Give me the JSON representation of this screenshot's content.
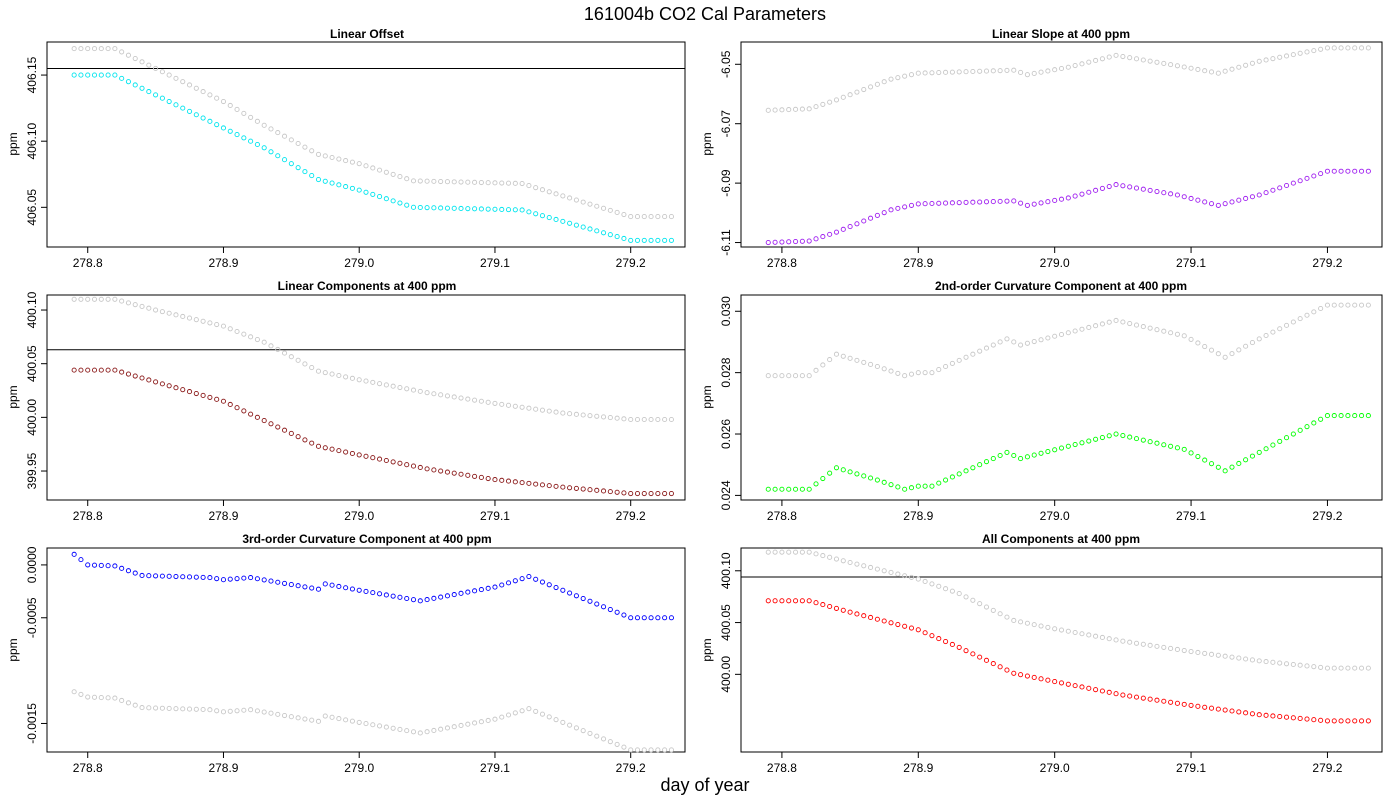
{
  "title": "161004b   CO2 Cal Parameters",
  "xlabel": "day of year",
  "colors": {
    "gray": "#c8c8c8",
    "cyan": "#00e5ee",
    "purple": "#a020f0",
    "darkred": "#8b1a1a",
    "green": "#00ff00",
    "blue": "#0000ff",
    "red": "#ff0000",
    "refline": "#000000"
  },
  "chart_data": [
    {
      "type": "scatter",
      "title": "Linear Offset",
      "ylabel": "ppm",
      "xlim": [
        278.77,
        279.24
      ],
      "ylim": [
        406.02,
        406.175
      ],
      "xticks": [
        278.8,
        278.9,
        279.0,
        279.1,
        279.2
      ],
      "xtick_labels": [
        "278.8",
        "278.9",
        "279.0",
        "279.1",
        "279.2"
      ],
      "yticks": [
        406.05,
        406.1,
        406.15
      ],
      "ytick_labels": [
        "406.05",
        "406.10",
        "406.15"
      ],
      "hline": 406.155,
      "x_start": 278.79,
      "x_step": 0.005,
      "series": [
        {
          "color": "#c8c8c8",
          "anchors": [
            [
              278.79,
              406.17
            ],
            [
              278.82,
              406.17
            ],
            [
              278.85,
              406.155
            ],
            [
              278.9,
              406.13
            ],
            [
              278.93,
              406.112
            ],
            [
              278.97,
              406.09
            ],
            [
              279.0,
              406.083
            ],
            [
              279.04,
              406.07
            ],
            [
              279.12,
              406.068
            ],
            [
              279.2,
              406.043
            ],
            [
              279.23,
              406.043
            ]
          ]
        },
        {
          "color": "#00e5ee",
          "anchors": [
            [
              278.79,
              406.15
            ],
            [
              278.82,
              406.15
            ],
            [
              278.85,
              406.135
            ],
            [
              278.9,
              406.11
            ],
            [
              278.93,
              406.095
            ],
            [
              278.97,
              406.071
            ],
            [
              279.0,
              406.063
            ],
            [
              279.04,
              406.05
            ],
            [
              279.12,
              406.048
            ],
            [
              279.2,
              406.025
            ],
            [
              279.23,
              406.025
            ]
          ]
        }
      ]
    },
    {
      "type": "scatter",
      "title": "Linear Slope at 400 ppm",
      "ylabel": "ppm",
      "xlim": [
        278.77,
        279.24
      ],
      "ylim": [
        -6.1115,
        -6.0425
      ],
      "xticks": [
        278.8,
        278.9,
        279.0,
        279.1,
        279.2
      ],
      "xtick_labels": [
        "278.8",
        "278.9",
        "279.0",
        "279.1",
        "279.2"
      ],
      "yticks": [
        -6.11,
        -6.09,
        -6.07,
        -6.05
      ],
      "ytick_labels": [
        "-6.11",
        "-6.09",
        "-6.07",
        "-6.05"
      ],
      "x_start": 278.79,
      "x_step": 0.005,
      "series": [
        {
          "color": "#c8c8c8",
          "anchors": [
            [
              278.79,
              -6.0655
            ],
            [
              278.82,
              -6.065
            ],
            [
              278.84,
              -6.062
            ],
            [
              278.88,
              -6.055
            ],
            [
              278.9,
              -6.053
            ],
            [
              278.97,
              -6.052
            ],
            [
              278.98,
              -6.0535
            ],
            [
              279.01,
              -6.051
            ],
            [
              279.045,
              -6.047
            ],
            [
              279.09,
              -6.0505
            ],
            [
              279.12,
              -6.053
            ],
            [
              279.15,
              -6.049
            ],
            [
              279.2,
              -6.0445
            ],
            [
              279.23,
              -6.0445
            ]
          ]
        },
        {
          "color": "#a020f0",
          "anchors": [
            [
              278.79,
              -6.11
            ],
            [
              278.82,
              -6.1095
            ],
            [
              278.84,
              -6.1065
            ],
            [
              278.88,
              -6.099
            ],
            [
              278.9,
              -6.097
            ],
            [
              278.97,
              -6.096
            ],
            [
              278.98,
              -6.0975
            ],
            [
              279.01,
              -6.095
            ],
            [
              279.045,
              -6.0905
            ],
            [
              279.09,
              -6.094
            ],
            [
              279.12,
              -6.0975
            ],
            [
              279.15,
              -6.094
            ],
            [
              279.2,
              -6.086
            ],
            [
              279.23,
              -6.086
            ]
          ]
        }
      ]
    },
    {
      "type": "scatter",
      "title": "Linear Components at 400 ppm",
      "ylabel": "ppm",
      "xlim": [
        278.77,
        279.24
      ],
      "ylim": [
        399.923,
        400.114
      ],
      "xticks": [
        278.8,
        278.9,
        279.0,
        279.1,
        279.2
      ],
      "xtick_labels": [
        "278.8",
        "278.9",
        "279.0",
        "279.1",
        "279.2"
      ],
      "yticks": [
        399.95,
        400.0,
        400.05,
        400.1
      ],
      "ytick_labels": [
        "399.95",
        "400.00",
        "400.05",
        "400.10"
      ],
      "hline": 400.063,
      "x_start": 278.79,
      "x_step": 0.005,
      "series": [
        {
          "color": "#c8c8c8",
          "anchors": [
            [
              278.79,
              400.11
            ],
            [
              278.82,
              400.11
            ],
            [
              278.85,
              400.1
            ],
            [
              278.9,
              400.085
            ],
            [
              278.93,
              400.07
            ],
            [
              278.97,
              400.043
            ],
            [
              279.0,
              400.035
            ],
            [
              279.05,
              400.023
            ],
            [
              279.1,
              400.013
            ],
            [
              279.15,
              400.004
            ],
            [
              279.2,
              399.998
            ],
            [
              279.23,
              399.998
            ]
          ]
        },
        {
          "color": "#8b1a1a",
          "anchors": [
            [
              278.79,
              400.044
            ],
            [
              278.82,
              400.044
            ],
            [
              278.85,
              400.033
            ],
            [
              278.9,
              400.015
            ],
            [
              278.93,
              399.997
            ],
            [
              278.97,
              399.973
            ],
            [
              279.0,
              399.965
            ],
            [
              279.05,
              399.952
            ],
            [
              279.1,
              399.942
            ],
            [
              279.15,
              399.935
            ],
            [
              279.2,
              399.929
            ],
            [
              279.23,
              399.929
            ]
          ]
        }
      ]
    },
    {
      "type": "scatter",
      "title": "2nd-order Curvature Component at 400 ppm",
      "ylabel": "ppm",
      "xlim": [
        278.77,
        279.24
      ],
      "ylim": [
        0.02385,
        0.03053
      ],
      "xticks": [
        278.8,
        278.9,
        279.0,
        279.1,
        279.2
      ],
      "xtick_labels": [
        "278.8",
        "278.9",
        "279.0",
        "279.1",
        "279.2"
      ],
      "yticks": [
        0.024,
        0.026,
        0.028,
        0.03
      ],
      "ytick_labels": [
        "0.024",
        "0.026",
        "0.028",
        "0.030"
      ],
      "x_start": 278.79,
      "x_step": 0.005,
      "series": [
        {
          "color": "#c8c8c8",
          "anchors": [
            [
              278.79,
              0.0279
            ],
            [
              278.82,
              0.0279
            ],
            [
              278.84,
              0.0286
            ],
            [
              278.87,
              0.0282
            ],
            [
              278.89,
              0.0279
            ],
            [
              278.9,
              0.028
            ],
            [
              278.91,
              0.028
            ],
            [
              278.965,
              0.0291
            ],
            [
              278.975,
              0.0289
            ],
            [
              279.045,
              0.0297
            ],
            [
              279.095,
              0.0292
            ],
            [
              279.125,
              0.0285
            ],
            [
              279.15,
              0.0291
            ],
            [
              279.2,
              0.0302
            ],
            [
              279.23,
              0.0302
            ]
          ]
        },
        {
          "color": "#00ff00",
          "anchors": [
            [
              278.79,
              0.0242
            ],
            [
              278.82,
              0.0242
            ],
            [
              278.84,
              0.0249
            ],
            [
              278.87,
              0.0245
            ],
            [
              278.89,
              0.0242
            ],
            [
              278.9,
              0.0243
            ],
            [
              278.91,
              0.0243
            ],
            [
              278.965,
              0.0254
            ],
            [
              278.975,
              0.0252
            ],
            [
              279.045,
              0.026
            ],
            [
              279.095,
              0.0255
            ],
            [
              279.125,
              0.0248
            ],
            [
              279.15,
              0.0254
            ],
            [
              279.2,
              0.0266
            ],
            [
              279.23,
              0.0266
            ]
          ]
        }
      ]
    },
    {
      "type": "scatter",
      "title": "3rd-order Curvature Component at 400 ppm",
      "ylabel": "ppm",
      "xlim": [
        278.77,
        279.24
      ],
      "ylim": [
        -0.00177,
        0.00016
      ],
      "xticks": [
        278.8,
        278.9,
        279.0,
        279.1,
        279.2
      ],
      "xtick_labels": [
        "278.8",
        "278.9",
        "279.0",
        "279.1",
        "279.2"
      ],
      "yticks": [
        -0.0015,
        -0.0005,
        0.0
      ],
      "ytick_labels": [
        "-0.0015",
        "-0.0005",
        "0.0000"
      ],
      "x_start": 278.79,
      "x_step": 0.005,
      "series": [
        {
          "color": "#0000ff",
          "anchors": [
            [
              278.79,
              0.0001
            ],
            [
              278.8,
              0.0
            ],
            [
              278.82,
              -1e-05
            ],
            [
              278.84,
              -0.0001
            ],
            [
              278.89,
              -0.00012
            ],
            [
              278.9,
              -0.00014
            ],
            [
              278.92,
              -0.00012
            ],
            [
              278.97,
              -0.00023
            ],
            [
              278.975,
              -0.00018
            ],
            [
              279.0,
              -0.00024
            ],
            [
              279.045,
              -0.00034
            ],
            [
              279.1,
              -0.00021
            ],
            [
              279.125,
              -0.00011
            ],
            [
              279.15,
              -0.00024
            ],
            [
              279.2,
              -0.0005
            ],
            [
              279.23,
              -0.0005
            ]
          ]
        },
        {
          "color": "#c8c8c8",
          "anchors": [
            [
              278.79,
              -0.0012
            ],
            [
              278.8,
              -0.00125
            ],
            [
              278.82,
              -0.00126
            ],
            [
              278.84,
              -0.00135
            ],
            [
              278.89,
              -0.00137
            ],
            [
              278.9,
              -0.00139
            ],
            [
              278.92,
              -0.00137
            ],
            [
              278.97,
              -0.00148
            ],
            [
              278.975,
              -0.00143
            ],
            [
              279.0,
              -0.00149
            ],
            [
              279.045,
              -0.00159
            ],
            [
              279.1,
              -0.00146
            ],
            [
              279.125,
              -0.00136
            ],
            [
              279.15,
              -0.00149
            ],
            [
              279.2,
              -0.00175
            ],
            [
              279.23,
              -0.00175
            ]
          ]
        }
      ]
    },
    {
      "type": "scatter",
      "title": "All Components at 400 ppm",
      "ylabel": "ppm",
      "xlim": [
        278.77,
        279.24
      ],
      "ylim": [
        399.925,
        400.122
      ],
      "xticks": [
        278.8,
        278.9,
        279.0,
        279.1,
        279.2
      ],
      "xtick_labels": [
        "278.8",
        "278.9",
        "279.0",
        "279.1",
        "279.2"
      ],
      "yticks": [
        400.0,
        400.05,
        400.1
      ],
      "ytick_labels": [
        "400.00",
        "400.05",
        "400.10"
      ],
      "hline": 400.094,
      "x_start": 278.79,
      "x_step": 0.005,
      "series": [
        {
          "color": "#c8c8c8",
          "anchors": [
            [
              278.79,
              400.118
            ],
            [
              278.82,
              400.118
            ],
            [
              278.85,
              400.108
            ],
            [
              278.9,
              400.092
            ],
            [
              278.93,
              400.078
            ],
            [
              278.97,
              400.052
            ],
            [
              279.0,
              400.044
            ],
            [
              279.05,
              400.032
            ],
            [
              279.1,
              400.022
            ],
            [
              279.15,
              400.013
            ],
            [
              279.2,
              400.006
            ],
            [
              279.23,
              400.006
            ]
          ]
        },
        {
          "color": "#ff0000",
          "anchors": [
            [
              278.79,
              400.071
            ],
            [
              278.82,
              400.071
            ],
            [
              278.85,
              400.06
            ],
            [
              278.9,
              400.043
            ],
            [
              278.93,
              400.026
            ],
            [
              278.97,
              400.001
            ],
            [
              279.0,
              399.993
            ],
            [
              279.05,
              399.98
            ],
            [
              279.1,
              399.97
            ],
            [
              279.15,
              399.961
            ],
            [
              279.2,
              399.955
            ],
            [
              279.23,
              399.955
            ]
          ]
        }
      ]
    }
  ]
}
